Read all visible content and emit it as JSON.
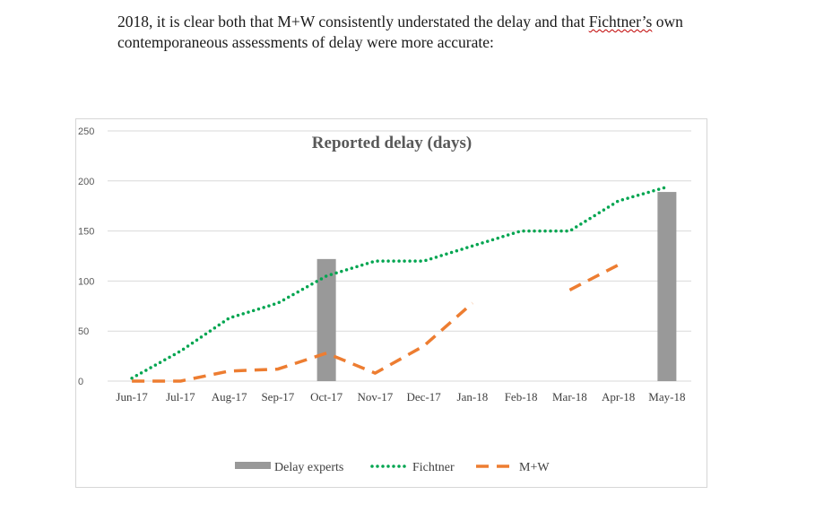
{
  "document": {
    "line1_start": "2018, it is clear both that M+W consistently understated the delay and that ",
    "line1_flagged": "Fichtner’s",
    "line1_end": " own",
    "line2": "contemporaneous assessments of delay were more accurate:"
  },
  "chart_data": {
    "type": "bar",
    "title": "Reported delay (days)",
    "categories": [
      "Jun-17",
      "Jul-17",
      "Aug-17",
      "Sep-17",
      "Oct-17",
      "Nov-17",
      "Dec-17",
      "Jan-18",
      "Feb-18",
      "Mar-18",
      "Apr-18",
      "May-18"
    ],
    "ylim": [
      0,
      250
    ],
    "yticks": [
      0,
      50,
      100,
      150,
      200,
      250
    ],
    "grid": true,
    "legend_position": "bottom",
    "series": [
      {
        "name": "Delay experts",
        "kind": "bar",
        "color": "#999999",
        "values": [
          null,
          null,
          null,
          null,
          122,
          null,
          null,
          null,
          null,
          null,
          null,
          189
        ]
      },
      {
        "name": "Fichtner",
        "kind": "line",
        "style": "dotted",
        "color": "#00a550",
        "values": [
          3,
          30,
          63,
          78,
          105,
          120,
          120,
          135,
          150,
          150,
          180,
          194
        ]
      },
      {
        "name": "M+W",
        "kind": "line",
        "style": "dashed",
        "color": "#ed7d31",
        "values": [
          0,
          0,
          10,
          12,
          28,
          8,
          35,
          78,
          null,
          91,
          116,
          null
        ]
      }
    ]
  }
}
